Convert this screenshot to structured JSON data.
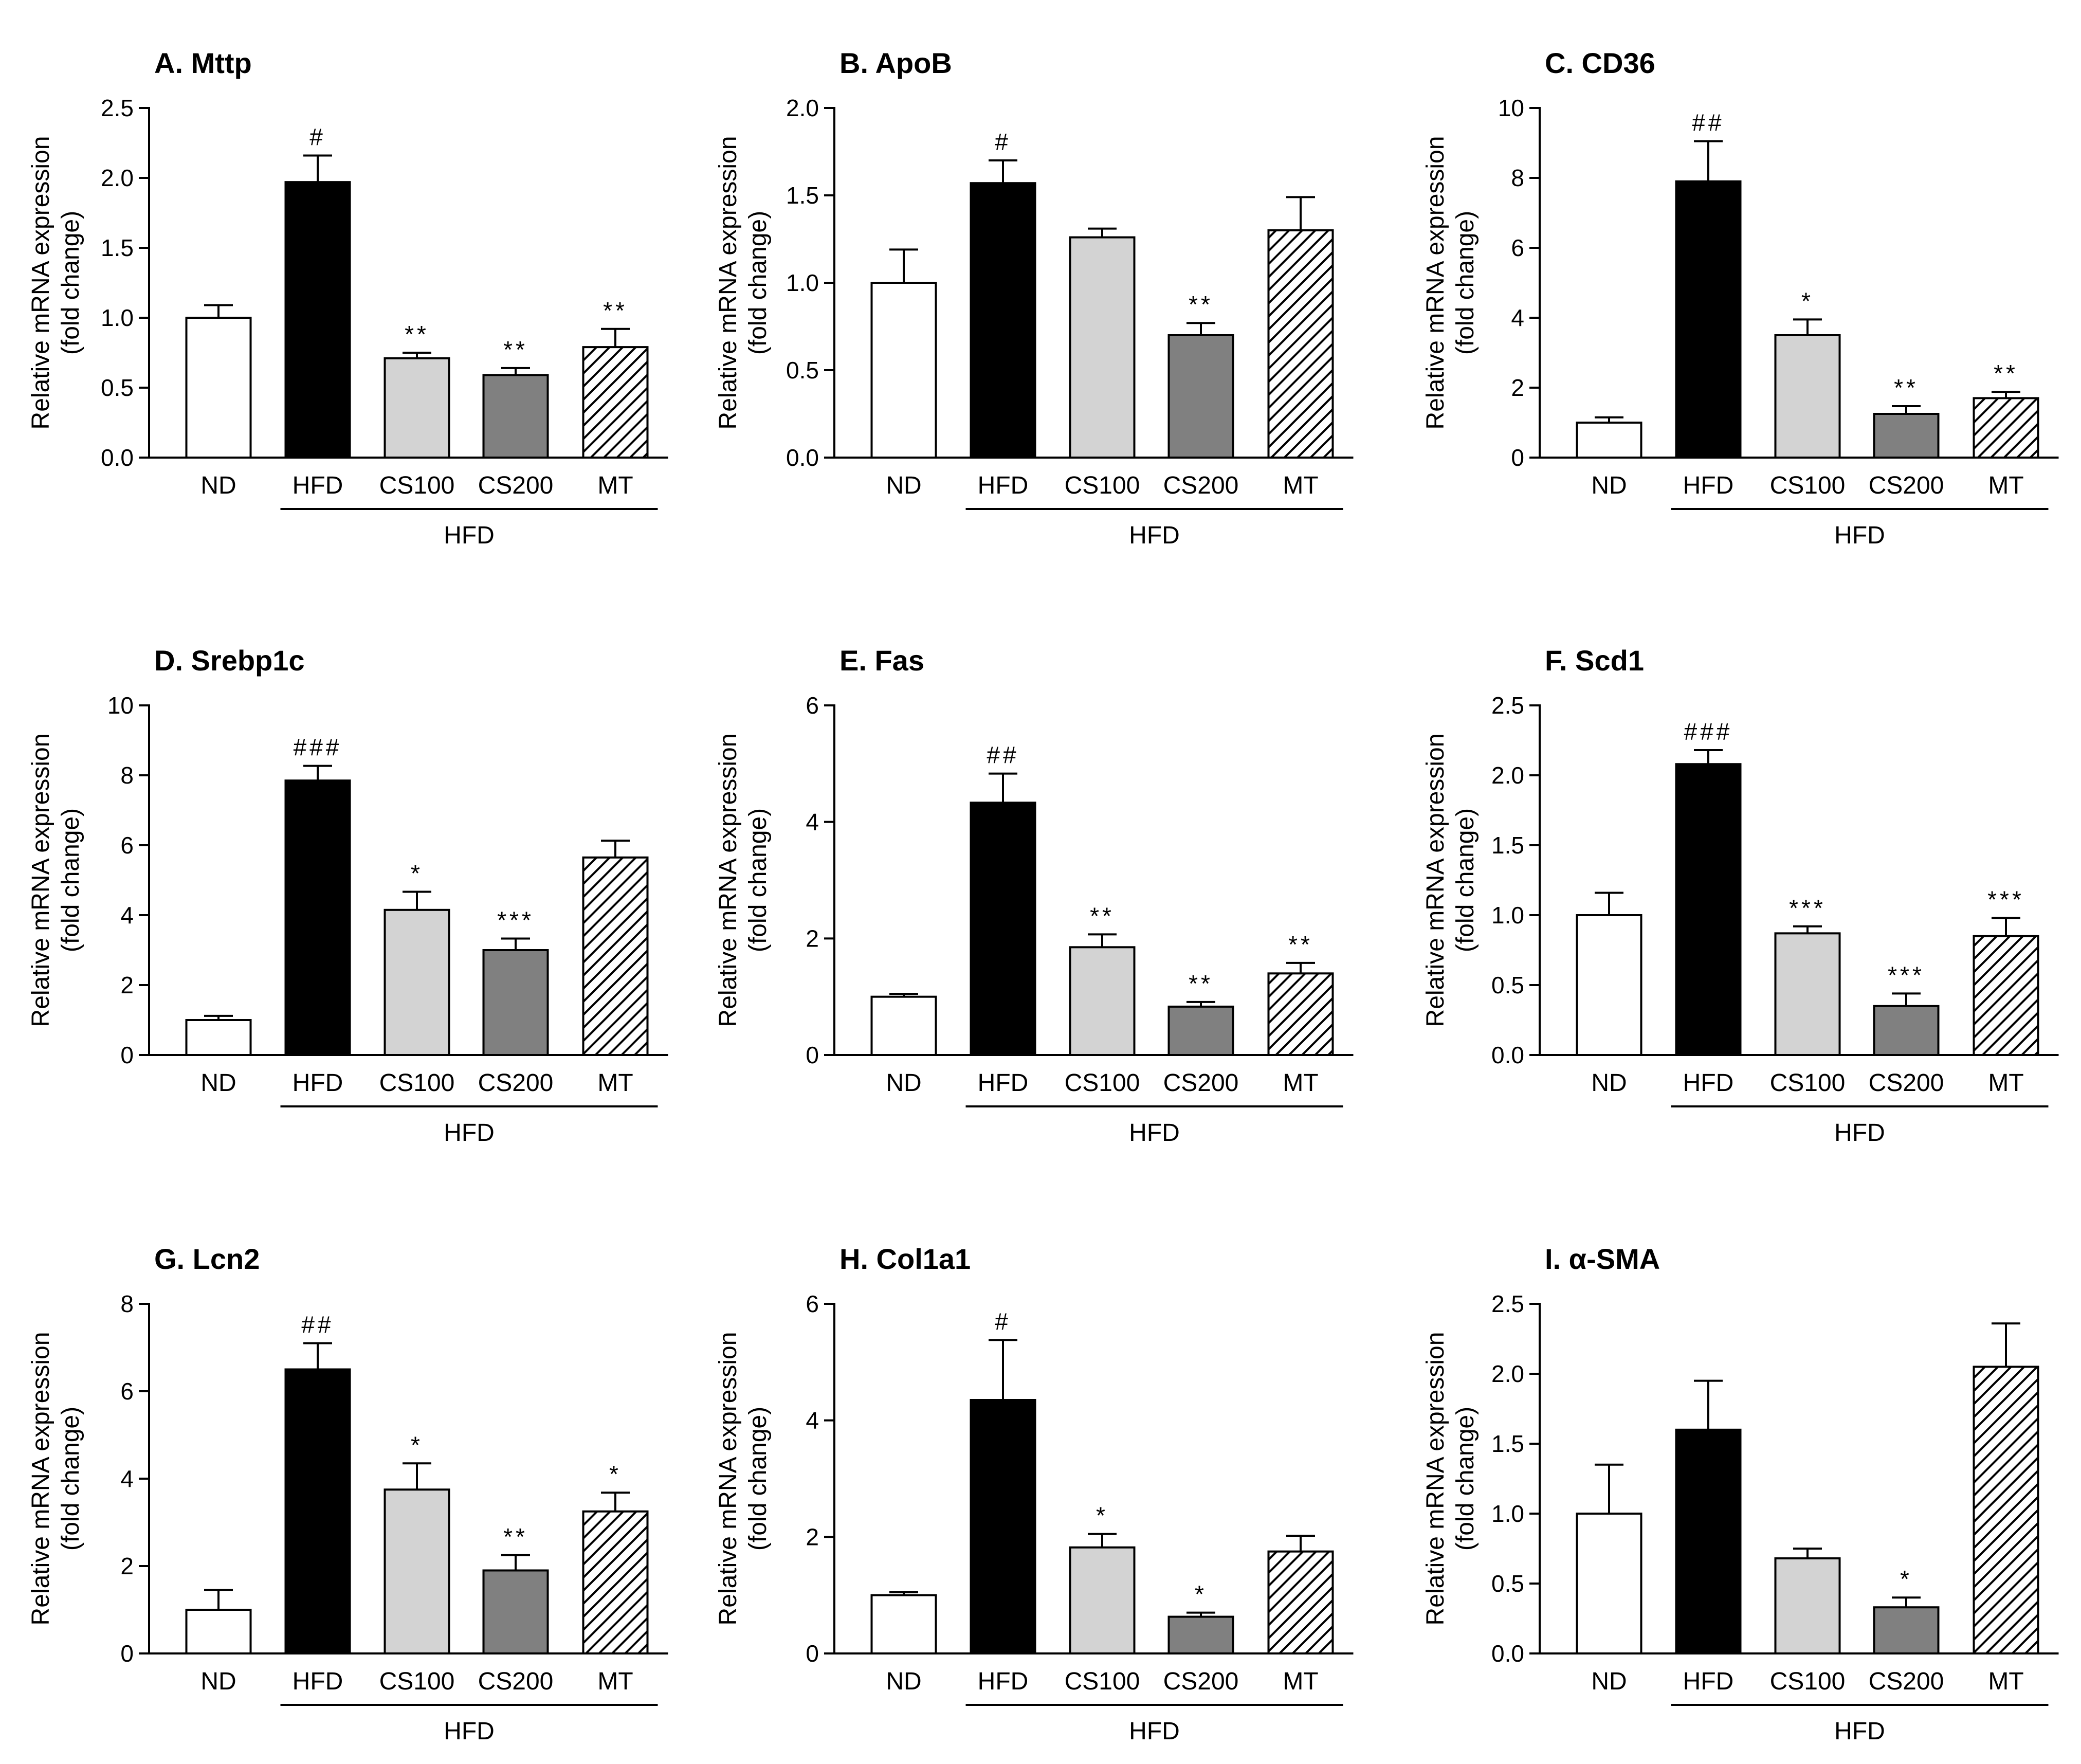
{
  "figure": {
    "ylabel_line1": "Relative mRNA expression",
    "ylabel_line2": "(fold change)",
    "group_label": "HFD"
  },
  "colors": {
    "ND": "#ffffff",
    "HFD": "#000000",
    "CS100": "#d3d3d3",
    "CS200": "#808080",
    "MT": "#ffffff",
    "axis": "#000000"
  },
  "chart_data": [
    {
      "panel": "A",
      "title": "A.  Mttp",
      "type": "bar",
      "categories": [
        "ND",
        "HFD",
        "CS100",
        "CS200",
        "MT"
      ],
      "values": [
        1.0,
        1.97,
        0.71,
        0.59,
        0.79
      ],
      "errors": [
        0.09,
        0.19,
        0.04,
        0.05,
        0.13
      ],
      "significance": [
        "",
        "#",
        "**",
        "**",
        "**"
      ],
      "ylim": [
        0,
        2.5
      ],
      "yticks": [
        0.0,
        0.5,
        1.0,
        1.5,
        2.0,
        2.5
      ],
      "tick_decimals": 1,
      "ylabel": "Relative mRNA expression (fold change)",
      "group_label": "HFD"
    },
    {
      "panel": "B",
      "title": "B.  ApoB",
      "type": "bar",
      "categories": [
        "ND",
        "HFD",
        "CS100",
        "CS200",
        "MT"
      ],
      "values": [
        1.0,
        1.57,
        1.26,
        0.7,
        1.3
      ],
      "errors": [
        0.19,
        0.13,
        0.05,
        0.07,
        0.19
      ],
      "significance": [
        "",
        "#",
        "",
        "**",
        ""
      ],
      "ylim": [
        0,
        2.0
      ],
      "yticks": [
        0.0,
        0.5,
        1.0,
        1.5,
        2.0
      ],
      "tick_decimals": 1,
      "ylabel": "Relative mRNA expression (fold change)",
      "group_label": "HFD"
    },
    {
      "panel": "C",
      "title": "C.  CD36",
      "type": "bar",
      "categories": [
        "ND",
        "HFD",
        "CS100",
        "CS200",
        "MT"
      ],
      "values": [
        1.0,
        7.9,
        3.5,
        1.25,
        1.7
      ],
      "errors": [
        0.15,
        1.15,
        0.45,
        0.22,
        0.18
      ],
      "significance": [
        "",
        "##",
        "*",
        "**",
        "**"
      ],
      "ylim": [
        0,
        10
      ],
      "yticks": [
        0,
        2,
        4,
        6,
        8,
        10
      ],
      "tick_decimals": 0,
      "ylabel": "Relative mRNA expression (fold change)",
      "group_label": "HFD"
    },
    {
      "panel": "D",
      "title": "D.  Srebp1c",
      "type": "bar",
      "categories": [
        "ND",
        "HFD",
        "CS100",
        "CS200",
        "MT"
      ],
      "values": [
        1.0,
        7.85,
        4.15,
        3.0,
        5.65
      ],
      "errors": [
        0.12,
        0.42,
        0.52,
        0.33,
        0.48
      ],
      "significance": [
        "",
        "###",
        "*",
        "***",
        ""
      ],
      "ylim": [
        0,
        10
      ],
      "yticks": [
        0,
        2,
        4,
        6,
        8,
        10
      ],
      "tick_decimals": 0,
      "ylabel": "Relative mRNA expression (fold change)",
      "group_label": "HFD"
    },
    {
      "panel": "E",
      "title": "E.  Fas",
      "type": "bar",
      "categories": [
        "ND",
        "HFD",
        "CS100",
        "CS200",
        "MT"
      ],
      "values": [
        1.0,
        4.33,
        1.85,
        0.83,
        1.4
      ],
      "errors": [
        0.05,
        0.5,
        0.22,
        0.08,
        0.18
      ],
      "significance": [
        "",
        "##",
        "**",
        "**",
        "**"
      ],
      "ylim": [
        0,
        6
      ],
      "yticks": [
        0,
        2,
        4,
        6
      ],
      "tick_decimals": 0,
      "ylabel": "Relative mRNA expression (fold change)",
      "group_label": "HFD"
    },
    {
      "panel": "F",
      "title": "F.  Scd1",
      "type": "bar",
      "categories": [
        "ND",
        "HFD",
        "CS100",
        "CS200",
        "MT"
      ],
      "values": [
        1.0,
        2.08,
        0.87,
        0.35,
        0.85
      ],
      "errors": [
        0.16,
        0.1,
        0.05,
        0.09,
        0.13
      ],
      "significance": [
        "",
        "###",
        "***",
        "***",
        "***"
      ],
      "ylim": [
        0,
        2.5
      ],
      "yticks": [
        0.0,
        0.5,
        1.0,
        1.5,
        2.0,
        2.5
      ],
      "tick_decimals": 1,
      "ylabel": "Relative mRNA expression (fold change)",
      "group_label": "HFD"
    },
    {
      "panel": "G",
      "title": "G.  Lcn2",
      "type": "bar",
      "categories": [
        "ND",
        "HFD",
        "CS100",
        "CS200",
        "MT"
      ],
      "values": [
        1.0,
        6.5,
        3.75,
        1.9,
        3.25
      ],
      "errors": [
        0.45,
        0.6,
        0.6,
        0.35,
        0.43
      ],
      "significance": [
        "",
        "##",
        "*",
        "**",
        "*"
      ],
      "ylim": [
        0,
        8
      ],
      "yticks": [
        0,
        2,
        4,
        6,
        8
      ],
      "tick_decimals": 0,
      "ylabel": "Relative mRNA expression (fold change)",
      "group_label": "HFD"
    },
    {
      "panel": "H",
      "title": "H. Col1a1",
      "type": "bar",
      "categories": [
        "ND",
        "HFD",
        "CS100",
        "CS200",
        "MT"
      ],
      "values": [
        1.0,
        4.35,
        1.82,
        0.63,
        1.75
      ],
      "errors": [
        0.05,
        1.03,
        0.23,
        0.07,
        0.27
      ],
      "significance": [
        "",
        "#",
        "*",
        "*",
        ""
      ],
      "ylim": [
        0,
        6
      ],
      "yticks": [
        0,
        2,
        4,
        6
      ],
      "tick_decimals": 0,
      "ylabel": "Relative mRNA expression (fold change)",
      "group_label": "HFD"
    },
    {
      "panel": "I",
      "title": "I. α-SMA",
      "type": "bar",
      "categories": [
        "ND",
        "HFD",
        "CS100",
        "CS200",
        "MT"
      ],
      "values": [
        1.0,
        1.6,
        0.68,
        0.33,
        2.05
      ],
      "errors": [
        0.35,
        0.35,
        0.07,
        0.07,
        0.31
      ],
      "significance": [
        "",
        "",
        "",
        "*",
        ""
      ],
      "ylim": [
        0,
        2.5
      ],
      "yticks": [
        0.0,
        0.5,
        1.0,
        1.5,
        2.0,
        2.5
      ],
      "tick_decimals": 1,
      "ylabel": "Relative mRNA expression (fold change)",
      "group_label": "HFD"
    }
  ]
}
